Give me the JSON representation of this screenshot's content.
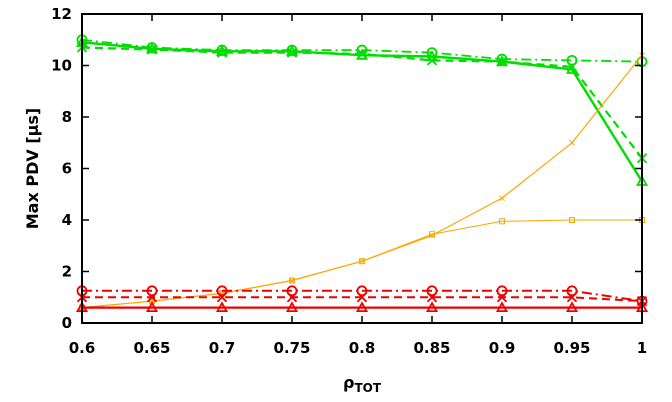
{
  "chart_data": {
    "type": "line",
    "title": "",
    "xlabel": "ρ",
    "xlabel_sub": "TOT",
    "ylabel": "Max PDV [µs]",
    "xlim": [
      0.6,
      1.0
    ],
    "ylim": [
      0,
      12
    ],
    "x": [
      0.6,
      0.65,
      0.7,
      0.75,
      0.8,
      0.85,
      0.9,
      0.95,
      1.0
    ],
    "x_tick_labels": [
      "0.6",
      "0.65",
      "0.7",
      "0.75",
      "0.8",
      "0.85",
      "0.9",
      "0.95",
      "1"
    ],
    "y_ticks": [
      0,
      2,
      4,
      6,
      8,
      10,
      12
    ],
    "y_tick_labels": [
      "0",
      "2",
      "4",
      "6",
      "8",
      "10",
      "12"
    ],
    "grid": false,
    "legend": "none",
    "series": [
      {
        "color": "#00dd00",
        "line": "solid",
        "marker": "triangle",
        "width": 2.4,
        "values": [
          10.9,
          10.65,
          10.55,
          10.55,
          10.4,
          10.35,
          10.15,
          9.85,
          5.5
        ]
      },
      {
        "color": "#00dd00",
        "line": "dashed",
        "marker": "cross",
        "width": 2.2,
        "values": [
          10.7,
          10.62,
          10.5,
          10.5,
          10.45,
          10.2,
          10.15,
          9.95,
          6.4
        ]
      },
      {
        "color": "#00dd00",
        "line": "dashdot",
        "marker": "circle",
        "width": 1.8,
        "values": [
          11.0,
          10.7,
          10.6,
          10.6,
          10.6,
          10.5,
          10.25,
          10.2,
          10.15
        ]
      },
      {
        "color": "#ffa500",
        "line": "solid",
        "marker": "cross",
        "width": 1.2,
        "values": [
          0.6,
          0.85,
          1.15,
          1.65,
          2.4,
          3.4,
          4.85,
          7.0,
          10.4
        ]
      },
      {
        "color": "#ffa500",
        "line": "solid",
        "marker": "square",
        "width": 1.0,
        "values": [
          0.6,
          0.85,
          1.15,
          1.65,
          2.4,
          3.45,
          3.95,
          4.0,
          4.0
        ]
      },
      {
        "color": "#ee0000",
        "line": "solid",
        "marker": "triangle",
        "width": 2.2,
        "values": [
          0.6,
          0.6,
          0.6,
          0.6,
          0.6,
          0.6,
          0.6,
          0.6,
          0.6
        ]
      },
      {
        "color": "#ee0000",
        "line": "dashed",
        "marker": "cross",
        "width": 2.0,
        "values": [
          1.0,
          1.0,
          1.0,
          1.0,
          1.0,
          1.0,
          1.0,
          1.0,
          0.85
        ]
      },
      {
        "color": "#ee0000",
        "line": "dashdot",
        "marker": "circle",
        "width": 2.0,
        "values": [
          1.25,
          1.25,
          1.25,
          1.25,
          1.25,
          1.25,
          1.25,
          1.25,
          0.85
        ]
      }
    ]
  }
}
